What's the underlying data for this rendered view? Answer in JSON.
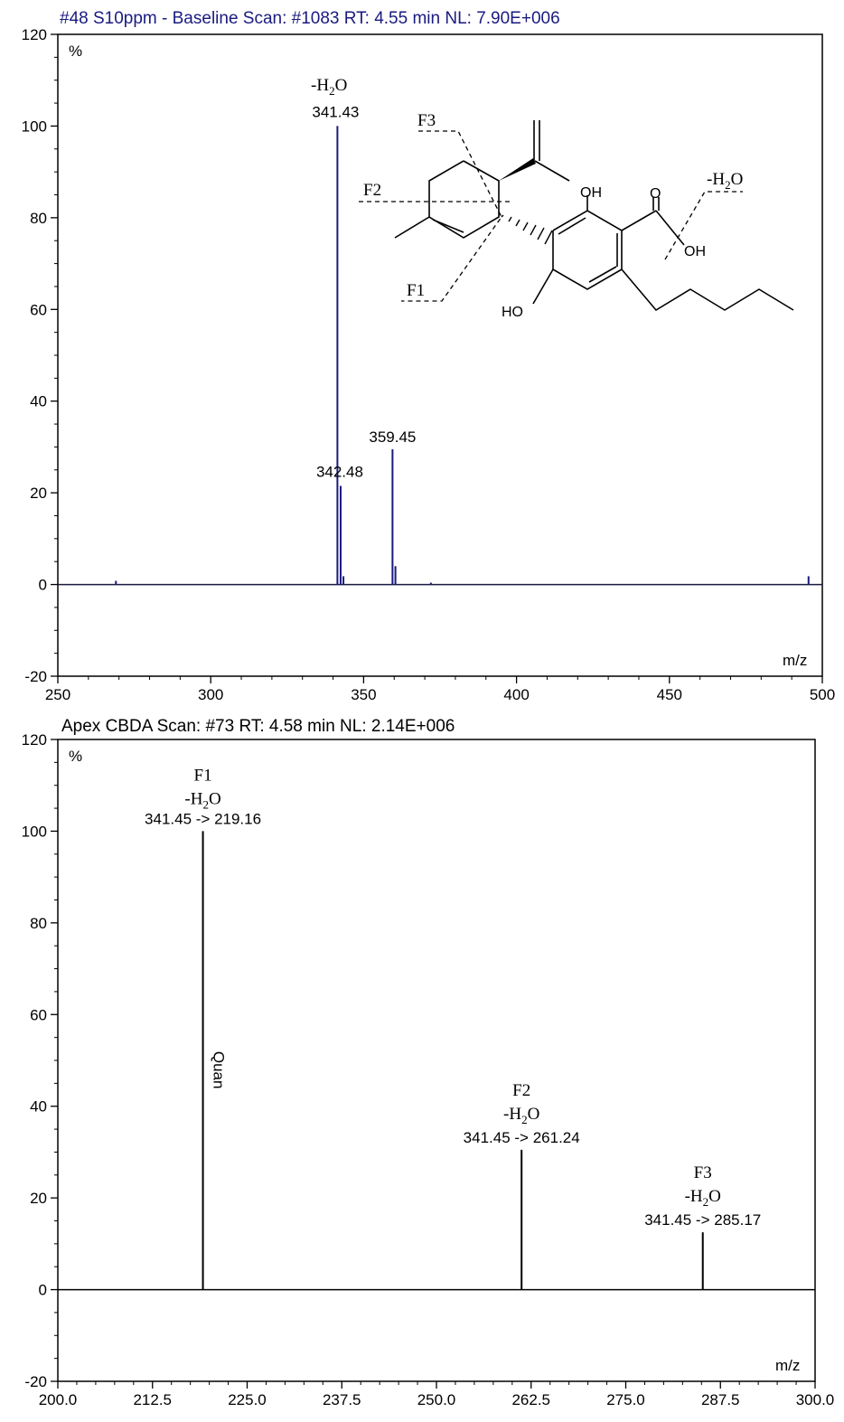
{
  "chart_data": [
    {
      "type": "bar",
      "title": "#48 S10ppm - Baseline Scan: #1083  RT: 4.55 min NL: 7.90E+006",
      "ylabel": "%",
      "xlabel": "m/z",
      "xlim": [
        250,
        500
      ],
      "ylim": [
        -20,
        120
      ],
      "x_ticks": [
        "250",
        "300",
        "350",
        "400",
        "450",
        "500"
      ],
      "y_ticks": [
        "120",
        "100",
        "80",
        "60",
        "40",
        "20",
        "0",
        "-20"
      ],
      "color": "#1a1a80",
      "peaks": [
        {
          "x": 269.0,
          "y": 0.8
        },
        {
          "x": 341.43,
          "y": 100
        },
        {
          "x": 342.48,
          "y": 21.5
        },
        {
          "x": 343.4,
          "y": 1.8
        },
        {
          "x": 359.45,
          "y": 29.5
        },
        {
          "x": 360.4,
          "y": 4.0
        },
        {
          "x": 372.0,
          "y": 0.4
        },
        {
          "x": 495.5,
          "y": 1.8
        }
      ],
      "annotations": [
        {
          "label": "341.43",
          "x": 341.43,
          "y": 100,
          "extra": "-H2O"
        },
        {
          "label": "342.48",
          "x": 342.48,
          "y": 21.5
        },
        {
          "label": "359.45",
          "x": 359.45,
          "y": 29.5
        }
      ]
    },
    {
      "type": "bar",
      "title": "Apex CBDA Scan: #73  RT: 4.58 min NL: 2.14E+006",
      "ylabel": "%",
      "xlabel": "m/z",
      "xlim": [
        200.0,
        300.0
      ],
      "ylim": [
        -20,
        120
      ],
      "x_ticks": [
        "200.0",
        "212.5",
        "225.0",
        "237.5",
        "250.0",
        "262.5",
        "275.0",
        "287.5",
        "300.0"
      ],
      "y_ticks": [
        "120",
        "100",
        "80",
        "60",
        "40",
        "20",
        "0",
        "-20"
      ],
      "color": "#000000",
      "peaks": [
        {
          "x": 219.16,
          "y": 100,
          "frag": "F1",
          "label": "341.45 -> 219.16",
          "note": "Quan"
        },
        {
          "x": 261.24,
          "y": 30.5,
          "frag": "F2",
          "label": "341.45 -> 261.24"
        },
        {
          "x": 285.17,
          "y": 12.5,
          "frag": "F3",
          "label": "341.45 -> 285.17"
        }
      ]
    }
  ],
  "structure": {
    "fragments": [
      "F1",
      "F2",
      "F3"
    ],
    "loss": "-H2O",
    "atoms": [
      "OH",
      "O",
      "OH",
      "HO"
    ]
  }
}
